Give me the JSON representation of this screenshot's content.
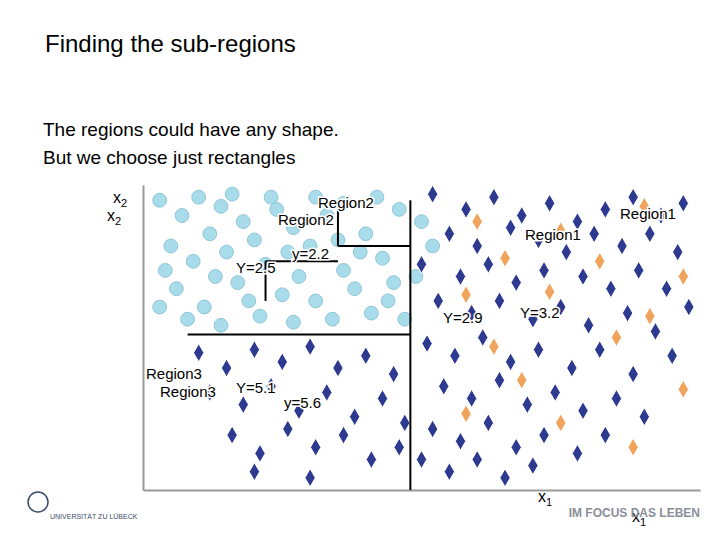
{
  "chart_data": {
    "type": "scatter",
    "title": "Finding the sub-regions",
    "subtitle": [
      "The regions could have any shape.",
      "But we choose just rectangles"
    ],
    "xlabel": "x1",
    "ylabel": "x2",
    "xlim": [
      0,
      100
    ],
    "ylim": [
      0,
      100
    ],
    "tick_labels": false,
    "grid": false,
    "series": [
      {
        "color": "#a9dceb",
        "marker": "circle",
        "x": [
          3,
          7,
          10,
          14,
          18,
          12,
          5,
          9,
          15,
          20,
          24,
          27,
          22,
          30,
          33,
          28,
          17,
          6,
          11,
          19,
          25,
          31,
          36,
          40,
          43,
          38,
          45,
          41,
          34,
          27,
          21,
          14,
          8,
          3,
          46,
          50,
          49,
          36,
          23,
          42,
          31,
          16,
          4,
          13,
          39,
          44,
          47,
          52,
          26,
          35
        ],
        "y": [
          95,
          90,
          96,
          93,
          88,
          84,
          80,
          75,
          78,
          82,
          92,
          86,
          74,
          80,
          90,
          70,
          68,
          66,
          60,
          62,
          64,
          62,
          72,
          84,
          76,
          66,
          68,
          58,
          56,
          55,
          57,
          54,
          56,
          60,
          92,
          88,
          70,
          94,
          96,
          96,
          96,
          97,
          72,
          70,
          78,
          62,
          56,
          80,
          78,
          82
        ]
      },
      {
        "color": "#2e3a8f",
        "marker": "diamond",
        "x": [
          52,
          58,
          63,
          68,
          73,
          78,
          83,
          88,
          93,
          97,
          55,
          60,
          66,
          71,
          76,
          81,
          86,
          91,
          96,
          50,
          57,
          62,
          67,
          72,
          79,
          84,
          89,
          94,
          53,
          59,
          64,
          70,
          75,
          80,
          87,
          92,
          98,
          51,
          56,
          61,
          66,
          71,
          77,
          82,
          88,
          95,
          54,
          59,
          64,
          69,
          74,
          79,
          85,
          90,
          52,
          57,
          62,
          67,
          72,
          78,
          83,
          50,
          55,
          60,
          65,
          70,
          10,
          15,
          20,
          25,
          30,
          35,
          40,
          45,
          12,
          18,
          23,
          28,
          33,
          38,
          43,
          47,
          16,
          21,
          26,
          31,
          36,
          41,
          46,
          20,
          30
        ],
        "y": [
          97,
          92,
          96,
          90,
          94,
          88,
          92,
          96,
          90,
          94,
          84,
          80,
          86,
          82,
          78,
          84,
          80,
          84,
          78,
          74,
          70,
          74,
          68,
          72,
          70,
          66,
          72,
          66,
          62,
          58,
          62,
          56,
          60,
          54,
          58,
          52,
          60,
          48,
          44,
          50,
          42,
          46,
          40,
          46,
          38,
          44,
          34,
          30,
          36,
          28,
          32,
          26,
          30,
          24,
          20,
          16,
          22,
          14,
          18,
          12,
          18,
          10,
          6,
          10,
          4,
          8,
          45,
          40,
          46,
          42,
          47,
          40,
          44,
          38,
          32,
          28,
          34,
          26,
          32,
          24,
          30,
          22,
          18,
          12,
          20,
          14,
          18,
          10,
          14,
          6,
          4
        ]
      },
      {
        "color": "#f0a35a",
        "marker": "diamond",
        "x": [
          60,
          75,
          90,
          65,
          82,
          97,
          58,
          73,
          91,
          63,
          85,
          68,
          97,
          75,
          58,
          88
        ],
        "y": [
          88,
          85,
          93,
          76,
          75,
          70,
          64,
          65,
          57,
          47,
          50,
          36,
          33,
          22,
          25,
          14
        ]
      }
    ],
    "splits": [
      {
        "x": [
          48,
          48
        ],
        "y": [
          0,
          95
        ]
      },
      {
        "x": [
          8,
          48
        ],
        "y": [
          51,
          51
        ]
      },
      {
        "x": [
          35,
          35
        ],
        "y": [
          80,
          93
        ]
      },
      {
        "x": [
          35,
          48
        ],
        "y": [
          80,
          80
        ]
      },
      {
        "x": [
          22,
          35
        ],
        "y": [
          75,
          75
        ]
      },
      {
        "x": [
          22,
          22
        ],
        "y": [
          62,
          75
        ]
      }
    ],
    "annotations": [
      "x2",
      "Region2",
      "Region2",
      "Region1",
      "Region1",
      "y=2.2",
      "Y=2.5",
      "Y=2.9",
      "Y=3.2",
      "Region3",
      "Region3",
      "Y=5.1",
      "y=5.6",
      "x1"
    ],
    "footer": [
      "UNIVERSITÄT ZU LÜBECK",
      "IM FOCUS DAS LEBEN"
    ]
  }
}
